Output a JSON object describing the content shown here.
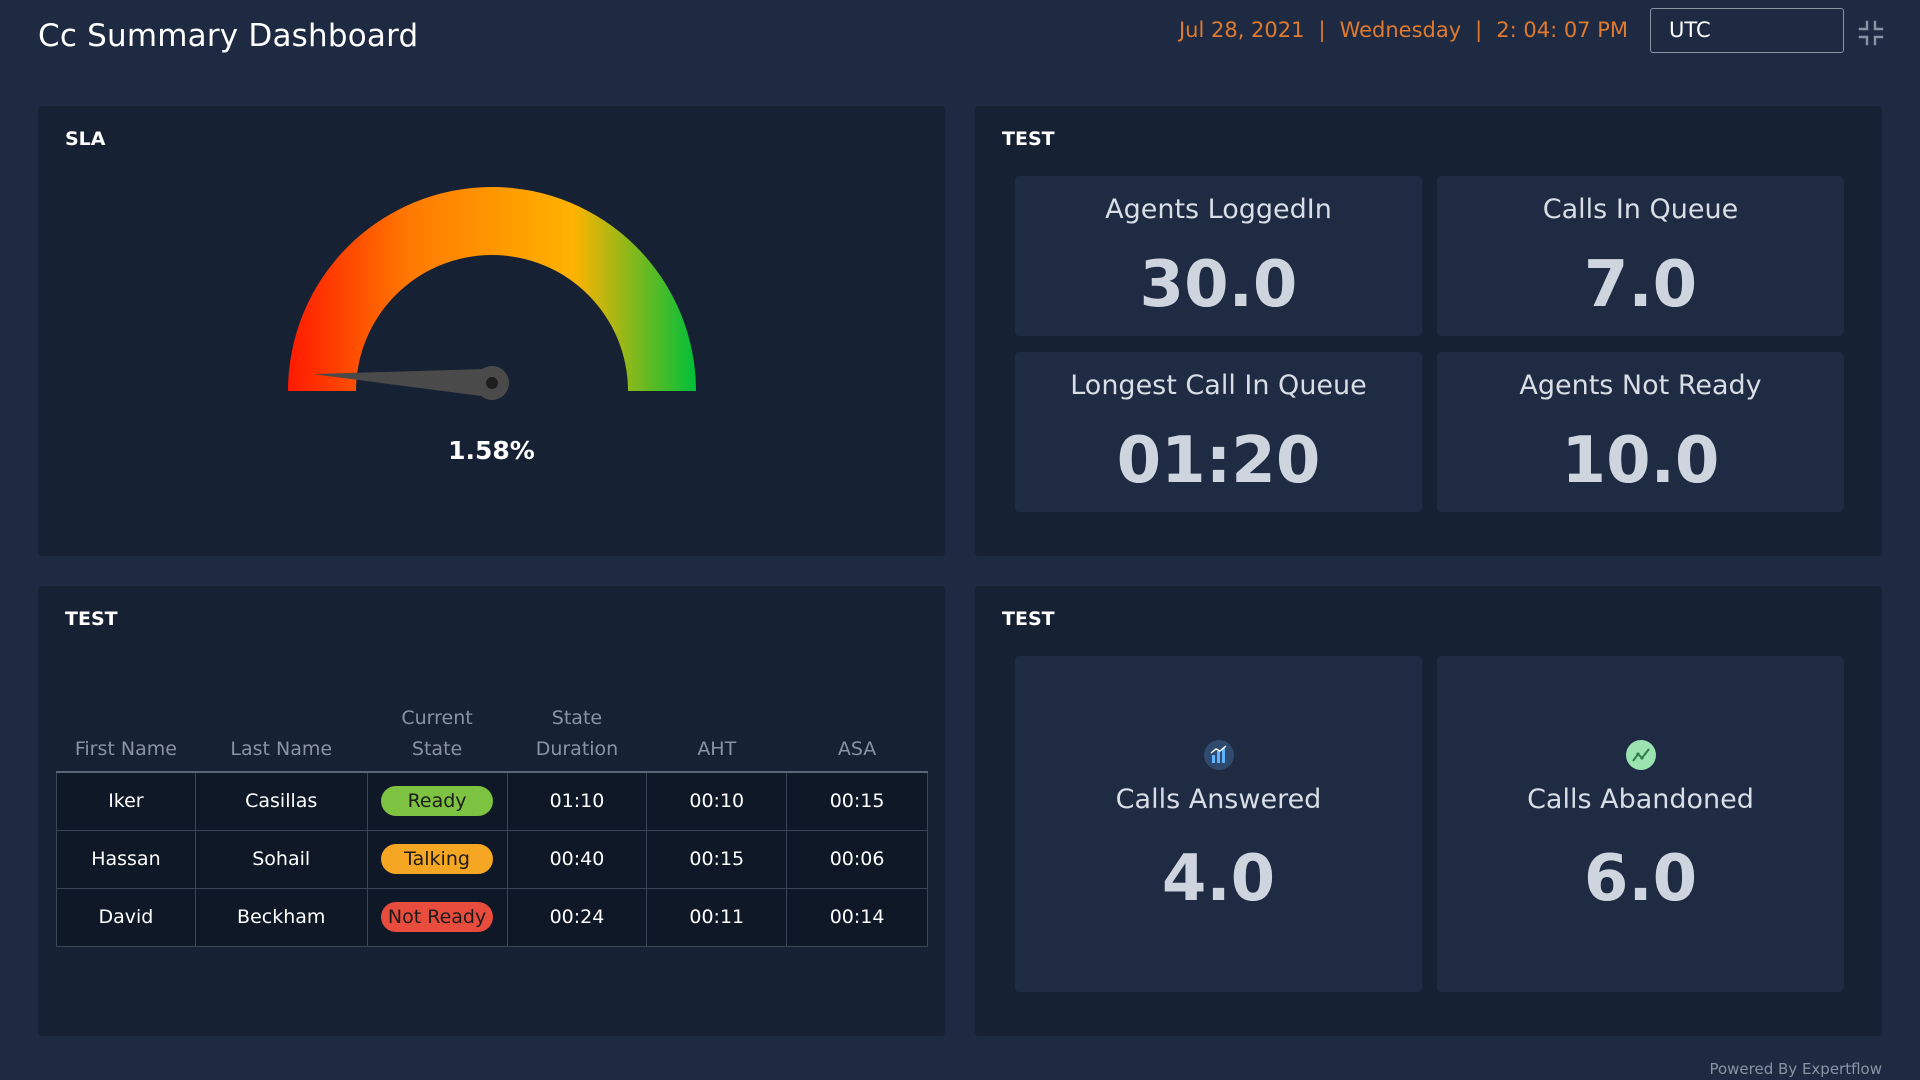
{
  "header": {
    "title": "Cc Summary Dashboard",
    "date": "Jul 28, 2021",
    "sep1": "|",
    "weekday": "Wednesday",
    "sep2": "|",
    "time": "2: 04: 07 PM",
    "timezone": "UTC",
    "collapse_icon": "collapse-icon"
  },
  "sla_panel": {
    "title": "SLA",
    "value_label": "1.58%",
    "value": 1.58,
    "gauge_colors": [
      "#ff1a00",
      "#ff7a00",
      "#ffb300",
      "#00bf3a"
    ]
  },
  "kpi_panel": {
    "title": "TEST",
    "tiles": [
      {
        "label": "Agents LoggedIn",
        "value": "30.0"
      },
      {
        "label": "Calls In Queue",
        "value": "7.0"
      },
      {
        "label": "Longest Call In Queue",
        "value": "01:20"
      },
      {
        "label": "Agents Not Ready",
        "value": "10.0"
      }
    ]
  },
  "table_panel": {
    "title": "TEST",
    "columns": [
      {
        "line1": "",
        "line2": "First Name"
      },
      {
        "line1": "",
        "line2": "Last Name"
      },
      {
        "line1": "Current",
        "line2": "State"
      },
      {
        "line1": "State",
        "line2": "Duration"
      },
      {
        "line1": "",
        "line2": "AHT"
      },
      {
        "line1": "",
        "line2": "ASA"
      }
    ],
    "rows": [
      {
        "first": "Iker",
        "last": "Casillas",
        "state": "Ready",
        "duration": "01:10",
        "aht": "00:10",
        "asa": "00:15"
      },
      {
        "first": "Hassan",
        "last": "Sohail",
        "state": "Talking",
        "duration": "00:40",
        "aht": "00:15",
        "asa": "00:06"
      },
      {
        "first": "David",
        "last": "Beckham",
        "state": "Not Ready",
        "duration": "00:24",
        "aht": "00:11",
        "asa": "00:14"
      }
    ],
    "state_colors": {
      "Ready": "#7ec242",
      "Talking": "#f5a623",
      "Not Ready": "#e74c3c"
    }
  },
  "calls_panel": {
    "title": "TEST",
    "tiles": [
      {
        "label": "Calls Answered",
        "value": "4.0",
        "icon": "bar-chart-icon"
      },
      {
        "label": "Calls Abandoned",
        "value": "6.0",
        "icon": "line-chart-icon"
      }
    ]
  },
  "footer": {
    "text": "Powered By Expertflow"
  }
}
